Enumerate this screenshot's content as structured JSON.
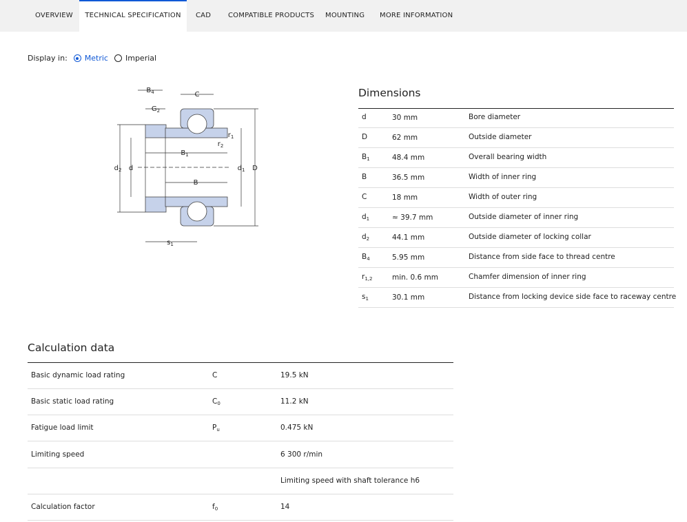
{
  "tabs": [
    "OVERVIEW",
    "TECHNICAL SPECIFICATION",
    "CAD",
    "COMPATIBLE PRODUCTS",
    "MOUNTING",
    "MORE INFORMATION"
  ],
  "display": {
    "label": "Display in:",
    "metric": "Metric",
    "imperial": "Imperial"
  },
  "diagram": {
    "labels": [
      {
        "text": "B",
        "sub": "4"
      },
      {
        "text": "C"
      },
      {
        "text": "G",
        "sub": "2"
      },
      {
        "text": "r",
        "sub": "1"
      },
      {
        "text": "r",
        "sub": "2"
      },
      {
        "text": "B",
        "sub": "1"
      },
      {
        "text": "d",
        "sub": "2"
      },
      {
        "text": "d"
      },
      {
        "text": "d",
        "sub": "1"
      },
      {
        "text": "D"
      },
      {
        "text": "B"
      },
      {
        "text": "s",
        "sub": "1"
      }
    ]
  },
  "dimensions": {
    "title": "Dimensions",
    "rows": [
      {
        "symbol": "d",
        "value": "30 mm",
        "description": "Bore diameter"
      },
      {
        "symbol": "D",
        "value": "62 mm",
        "description": "Outside diameter"
      },
      {
        "symbol": "B",
        "sub": "1",
        "value": "48.4 mm",
        "description": "Overall bearing width"
      },
      {
        "symbol": "B",
        "value": "36.5 mm",
        "description": "Width of inner ring"
      },
      {
        "symbol": "C",
        "value": "18 mm",
        "description": "Width of outer ring"
      },
      {
        "symbol": "d",
        "sub": "1",
        "value": "≈ 39.7 mm",
        "description": "Outside diameter of inner ring"
      },
      {
        "symbol": "d",
        "sub": "2",
        "value": "44.1 mm",
        "description": "Outside diameter of locking collar"
      },
      {
        "symbol": "B",
        "sub": "4",
        "value": "5.95 mm",
        "description": "Distance from side face to thread centre"
      },
      {
        "symbol": "r",
        "sub": "1,2",
        "value": "min. 0.6 mm",
        "description": "Chamfer dimension of inner ring"
      },
      {
        "symbol": "s",
        "sub": "1",
        "value": "30.1 mm",
        "description": "Distance from locking device side face to raceway centre"
      }
    ]
  },
  "calculation": {
    "title": "Calculation data",
    "rows": [
      {
        "label": "Basic dynamic load rating",
        "symbol": "C",
        "value": "19.5 kN"
      },
      {
        "label": "Basic static load rating",
        "symbol": "C",
        "sub": "0",
        "value": "11.2 kN"
      },
      {
        "label": "Fatigue load limit",
        "symbol": "P",
        "sub": "u",
        "value": "0.475 kN"
      },
      {
        "label": "Limiting speed",
        "value": "6 300 r/min"
      },
      {
        "value": "Limiting speed with shaft tolerance h6"
      },
      {
        "label": "Calculation factor",
        "symbol": "f",
        "sub": "0",
        "value": "14"
      }
    ]
  }
}
